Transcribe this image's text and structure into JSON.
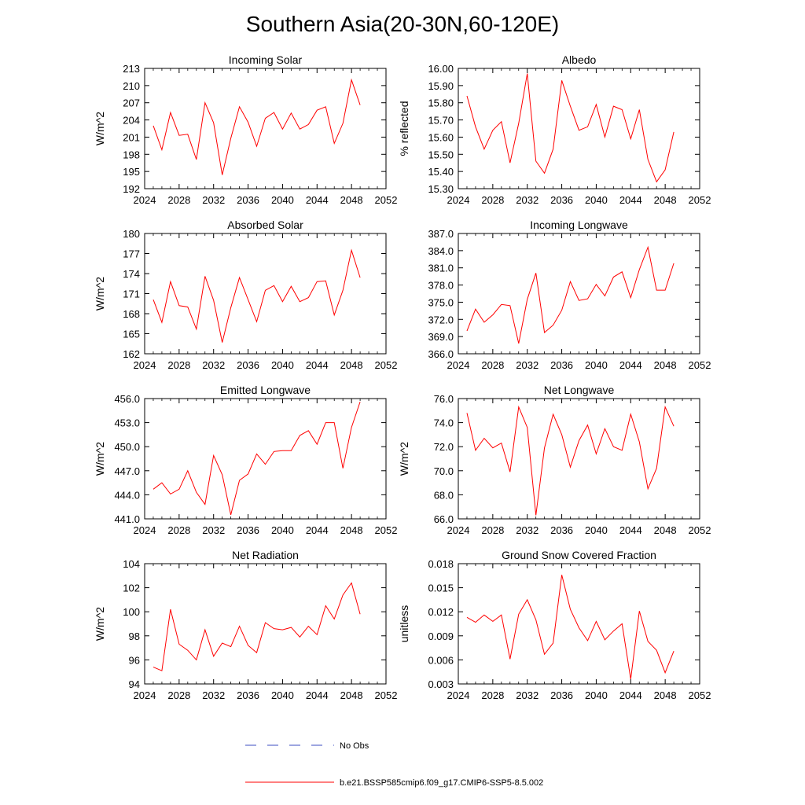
{
  "figure": {
    "title": "Southern Asia(20-30N,60-120E)",
    "legend": {
      "obs_label": "No Obs",
      "model_label": "b.e21.BSSP585cmip6.f09_g17.CMIP6-SSP5-8.5.002",
      "obs_color": "#3b4cc0",
      "model_color": "#ff0000"
    }
  },
  "chart_data": [
    {
      "type": "line",
      "title": "Incoming Solar",
      "ylabel": "W/m^2",
      "xlim": [
        2024,
        2052
      ],
      "xticks": [
        "2024",
        "2028",
        "2032",
        "2036",
        "2040",
        "2044",
        "2048",
        "2052"
      ],
      "ylim": [
        192,
        213
      ],
      "yticks": [
        "192",
        "195",
        "198",
        "201",
        "204",
        "207",
        "210",
        "213"
      ],
      "x": [
        2025,
        2026,
        2027,
        2028,
        2029,
        2030,
        2031,
        2032,
        2033,
        2034,
        2035,
        2036,
        2037,
        2038,
        2039,
        2040,
        2041,
        2042,
        2043,
        2044,
        2045,
        2046,
        2047,
        2048,
        2049
      ],
      "series": [
        {
          "name": "b.e21.BSSP585cmip6.f09_g17.CMIP6-SSP5-8.5.002",
          "values": [
            203.0,
            198.8,
            205.3,
            201.3,
            201.5,
            197.1,
            207.0,
            203.5,
            194.4,
            200.8,
            206.3,
            203.6,
            199.4,
            204.3,
            205.3,
            202.4,
            205.2,
            202.4,
            203.2,
            205.7,
            206.3,
            199.9,
            203.4,
            211.0,
            206.6
          ]
        }
      ]
    },
    {
      "type": "line",
      "title": "Albedo",
      "ylabel": "% reflected",
      "xlim": [
        2024,
        2052
      ],
      "xticks": [
        "2024",
        "2028",
        "2032",
        "2036",
        "2040",
        "2044",
        "2048",
        "2052"
      ],
      "ylim": [
        15.3,
        16.0
      ],
      "yticks": [
        "15.30",
        "15.40",
        "15.50",
        "15.60",
        "15.70",
        "15.80",
        "15.90",
        "16.00"
      ],
      "x": [
        2025,
        2026,
        2027,
        2028,
        2029,
        2030,
        2031,
        2032,
        2033,
        2034,
        2035,
        2036,
        2037,
        2038,
        2039,
        2040,
        2041,
        2042,
        2043,
        2044,
        2045,
        2046,
        2047,
        2048,
        2049
      ],
      "series": [
        {
          "name": "b.e21.BSSP585cmip6.f09_g17.CMIP6-SSP5-8.5.002",
          "values": [
            15.84,
            15.66,
            15.53,
            15.64,
            15.69,
            15.45,
            15.68,
            15.97,
            15.46,
            15.39,
            15.53,
            15.93,
            15.78,
            15.64,
            15.66,
            15.79,
            15.6,
            15.78,
            15.76,
            15.59,
            15.76,
            15.47,
            15.34,
            15.41,
            15.63
          ]
        }
      ]
    },
    {
      "type": "line",
      "title": "Absorbed Solar",
      "ylabel": "W/m^2",
      "xlim": [
        2024,
        2052
      ],
      "xticks": [
        "2024",
        "2028",
        "2032",
        "2036",
        "2040",
        "2044",
        "2048",
        "2052"
      ],
      "ylim": [
        162,
        180
      ],
      "yticks": [
        "162",
        "165",
        "168",
        "171",
        "174",
        "177",
        "180"
      ],
      "x": [
        2025,
        2026,
        2027,
        2028,
        2029,
        2030,
        2031,
        2032,
        2033,
        2034,
        2035,
        2036,
        2037,
        2038,
        2039,
        2040,
        2041,
        2042,
        2043,
        2044,
        2045,
        2046,
        2047,
        2048,
        2049
      ],
      "series": [
        {
          "name": "b.e21.BSSP585cmip6.f09_g17.CMIP6-SSP5-8.5.002",
          "values": [
            170.1,
            166.7,
            172.8,
            169.2,
            169.0,
            165.7,
            173.6,
            170.0,
            163.7,
            168.9,
            173.4,
            170.1,
            166.8,
            171.5,
            172.2,
            169.8,
            172.1,
            169.8,
            170.4,
            172.8,
            172.9,
            167.8,
            171.5,
            177.5,
            173.4
          ]
        }
      ]
    },
    {
      "type": "line",
      "title": "Incoming Longwave",
      "ylabel": "",
      "xlim": [
        2024,
        2052
      ],
      "xticks": [
        "2024",
        "2028",
        "2032",
        "2036",
        "2040",
        "2044",
        "2048",
        "2052"
      ],
      "ylim": [
        366.0,
        387.0
      ],
      "yticks": [
        "366.0",
        "369.0",
        "372.0",
        "375.0",
        "378.0",
        "381.0",
        "384.0",
        "387.0"
      ],
      "x": [
        2025,
        2026,
        2027,
        2028,
        2029,
        2030,
        2031,
        2032,
        2033,
        2034,
        2035,
        2036,
        2037,
        2038,
        2039,
        2040,
        2041,
        2042,
        2043,
        2044,
        2045,
        2046,
        2047,
        2048,
        2049
      ],
      "series": [
        {
          "name": "b.e21.BSSP585cmip6.f09_g17.CMIP6-SSP5-8.5.002",
          "values": [
            370.0,
            373.8,
            371.5,
            372.8,
            374.6,
            374.4,
            367.8,
            375.5,
            380.1,
            369.7,
            371.0,
            373.6,
            378.6,
            375.3,
            375.6,
            378.1,
            376.1,
            379.4,
            380.3,
            375.8,
            380.7,
            384.6,
            377.1,
            377.1,
            381.8
          ]
        }
      ]
    },
    {
      "type": "line",
      "title": "Emitted Longwave",
      "ylabel": "W/m^2",
      "xlim": [
        2024,
        2052
      ],
      "xticks": [
        "2024",
        "2028",
        "2032",
        "2036",
        "2040",
        "2044",
        "2048",
        "2052"
      ],
      "ylim": [
        441.0,
        456.0
      ],
      "yticks": [
        "441.0",
        "444.0",
        "447.0",
        "450.0",
        "453.0",
        "456.0"
      ],
      "x": [
        2025,
        2026,
        2027,
        2028,
        2029,
        2030,
        2031,
        2032,
        2033,
        2034,
        2035,
        2036,
        2037,
        2038,
        2039,
        2040,
        2041,
        2042,
        2043,
        2044,
        2045,
        2046,
        2047,
        2048,
        2049
      ],
      "series": [
        {
          "name": "b.e21.BSSP585cmip6.f09_g17.CMIP6-SSP5-8.5.002",
          "values": [
            444.7,
            445.5,
            444.1,
            444.7,
            447.0,
            444.3,
            442.8,
            448.9,
            446.5,
            441.5,
            445.8,
            446.6,
            449.1,
            447.8,
            449.4,
            449.5,
            449.5,
            451.4,
            452.0,
            450.3,
            453.0,
            453.0,
            447.3,
            452.4,
            455.6
          ]
        }
      ]
    },
    {
      "type": "line",
      "title": "Net Longwave",
      "ylabel": "W/m^2",
      "xlim": [
        2024,
        2052
      ],
      "xticks": [
        "2024",
        "2028",
        "2032",
        "2036",
        "2040",
        "2044",
        "2048",
        "2052"
      ],
      "ylim": [
        66.0,
        76.0
      ],
      "yticks": [
        "66.0",
        "68.0",
        "70.0",
        "72.0",
        "74.0",
        "76.0"
      ],
      "x": [
        2025,
        2026,
        2027,
        2028,
        2029,
        2030,
        2031,
        2032,
        2033,
        2034,
        2035,
        2036,
        2037,
        2038,
        2039,
        2040,
        2041,
        2042,
        2043,
        2044,
        2045,
        2046,
        2047,
        2048,
        2049
      ],
      "series": [
        {
          "name": "b.e21.BSSP585cmip6.f09_g17.CMIP6-SSP5-8.5.002",
          "values": [
            74.8,
            71.7,
            72.7,
            71.9,
            72.3,
            69.9,
            75.3,
            73.6,
            66.3,
            71.9,
            74.7,
            73.0,
            70.3,
            72.5,
            73.8,
            71.4,
            73.5,
            72.0,
            71.7,
            74.7,
            72.4,
            68.5,
            70.2,
            75.3,
            73.7
          ]
        }
      ]
    },
    {
      "type": "line",
      "title": "Net Radiation",
      "ylabel": "W/m^2",
      "xlim": [
        2024,
        2052
      ],
      "xticks": [
        "2024",
        "2028",
        "2032",
        "2036",
        "2040",
        "2044",
        "2048",
        "2052"
      ],
      "ylim": [
        94,
        104
      ],
      "yticks": [
        "94",
        "96",
        "98",
        "100",
        "102",
        "104"
      ],
      "x": [
        2025,
        2026,
        2027,
        2028,
        2029,
        2030,
        2031,
        2032,
        2033,
        2034,
        2035,
        2036,
        2037,
        2038,
        2039,
        2040,
        2041,
        2042,
        2043,
        2044,
        2045,
        2046,
        2047,
        2048,
        2049
      ],
      "series": [
        {
          "name": "b.e21.BSSP585cmip6.f09_g17.CMIP6-SSP5-8.5.002",
          "values": [
            95.4,
            95.1,
            100.2,
            97.3,
            96.8,
            96.0,
            98.5,
            96.3,
            97.4,
            97.1,
            98.8,
            97.2,
            96.6,
            99.1,
            98.6,
            98.5,
            98.7,
            97.9,
            98.8,
            98.1,
            100.5,
            99.4,
            101.4,
            102.4,
            99.8
          ]
        }
      ]
    },
    {
      "type": "line",
      "title": "Ground Snow Covered Fraction",
      "ylabel": "unitless",
      "xlim": [
        2024,
        2052
      ],
      "xticks": [
        "2024",
        "2028",
        "2032",
        "2036",
        "2040",
        "2044",
        "2048",
        "2052"
      ],
      "ylim": [
        0.003,
        0.018
      ],
      "yticks": [
        "0.003",
        "0.006",
        "0.009",
        "0.012",
        "0.015",
        "0.018"
      ],
      "x": [
        2025,
        2026,
        2027,
        2028,
        2029,
        2030,
        2031,
        2032,
        2033,
        2034,
        2035,
        2036,
        2037,
        2038,
        2039,
        2040,
        2041,
        2042,
        2043,
        2044,
        2045,
        2046,
        2047,
        2048,
        2049
      ],
      "series": [
        {
          "name": "b.e21.BSSP585cmip6.f09_g17.CMIP6-SSP5-8.5.002",
          "values": [
            0.0113,
            0.0107,
            0.0116,
            0.0108,
            0.0116,
            0.0061,
            0.0117,
            0.0135,
            0.011,
            0.0067,
            0.0081,
            0.0166,
            0.0123,
            0.01,
            0.0084,
            0.0108,
            0.0085,
            0.0096,
            0.0105,
            0.0036,
            0.0121,
            0.0083,
            0.0072,
            0.0044,
            0.0071
          ]
        }
      ]
    }
  ]
}
